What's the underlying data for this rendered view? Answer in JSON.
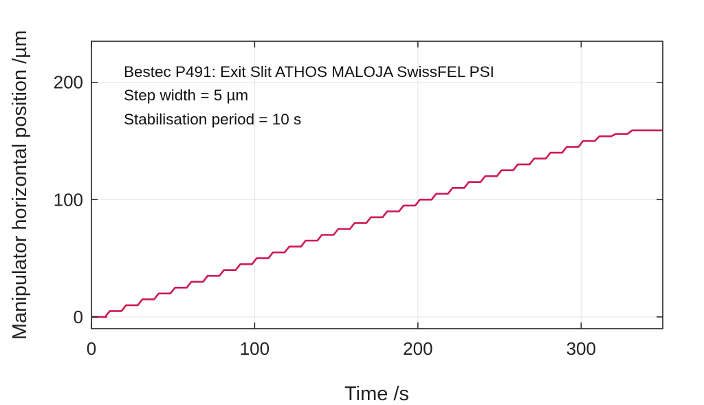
{
  "chart_data": {
    "type": "line",
    "xlabel": "Time /s",
    "ylabel": "Manipulator horizontal position /µm",
    "xlim": [
      0,
      350
    ],
    "ylim": [
      -10,
      235
    ],
    "xticks": [
      0,
      100,
      200,
      300
    ],
    "yticks": [
      0,
      100,
      200
    ],
    "grid": true,
    "annotations": [
      "Bestec P491: Exit Slit ATHOS MALOJA SwissFEL PSI",
      "Step width = 5 µm",
      "Stabilisation period = 10 s"
    ],
    "colors": {
      "series": "#cc1a50"
    },
    "series": [
      {
        "step_width_um": 5,
        "stabilisation_period_s": 10,
        "first_step_time_s": 10,
        "last_step_time_s": 330,
        "final_position_um": 159,
        "x": [
          0,
          8,
          10,
          20,
          30,
          40,
          50,
          60,
          70,
          80,
          90,
          100,
          110,
          120,
          130,
          140,
          150,
          160,
          170,
          180,
          190,
          200,
          210,
          220,
          230,
          240,
          250,
          260,
          270,
          280,
          290,
          300,
          310,
          320,
          330,
          350
        ],
        "y": [
          0,
          0,
          5,
          10,
          15,
          20,
          25,
          30,
          35,
          40,
          45,
          50,
          55,
          60,
          65,
          70,
          75,
          80,
          85,
          90,
          95,
          100,
          105,
          110,
          115,
          120,
          125,
          130,
          135,
          140,
          145,
          150,
          154,
          156,
          159,
          159
        ]
      }
    ]
  }
}
